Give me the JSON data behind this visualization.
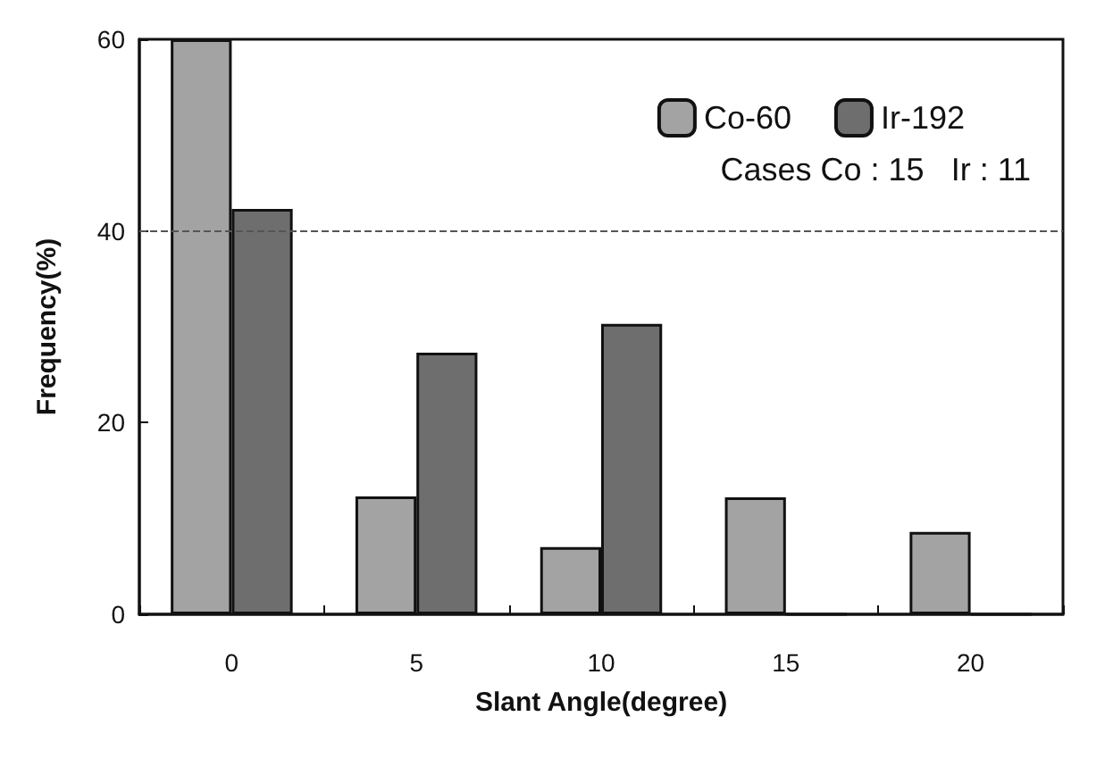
{
  "chart_data": {
    "type": "bar",
    "xlabel": "Slant Angle(degree)",
    "ylabel": "Frequency(%)",
    "categories": [
      "0",
      "5",
      "10",
      "15",
      "20"
    ],
    "series": [
      {
        "name": "Co-60",
        "color": "#a3a3a3",
        "values": [
          60,
          12.3,
          7.0,
          12.2,
          8.6
        ]
      },
      {
        "name": "Ir-192",
        "color": "#6e6e6e",
        "values": [
          42.3,
          27.3,
          30.3,
          0,
          0
        ]
      }
    ],
    "ylim": [
      0,
      60
    ],
    "yticks": [
      0,
      20,
      40,
      60
    ],
    "ref_lines": [
      {
        "axis": "y",
        "value": 40,
        "color": "#555555",
        "line_style": "dashed"
      }
    ],
    "annotations": [
      "Cases Co : 15   Ir : 11"
    ],
    "legend": "top right"
  }
}
